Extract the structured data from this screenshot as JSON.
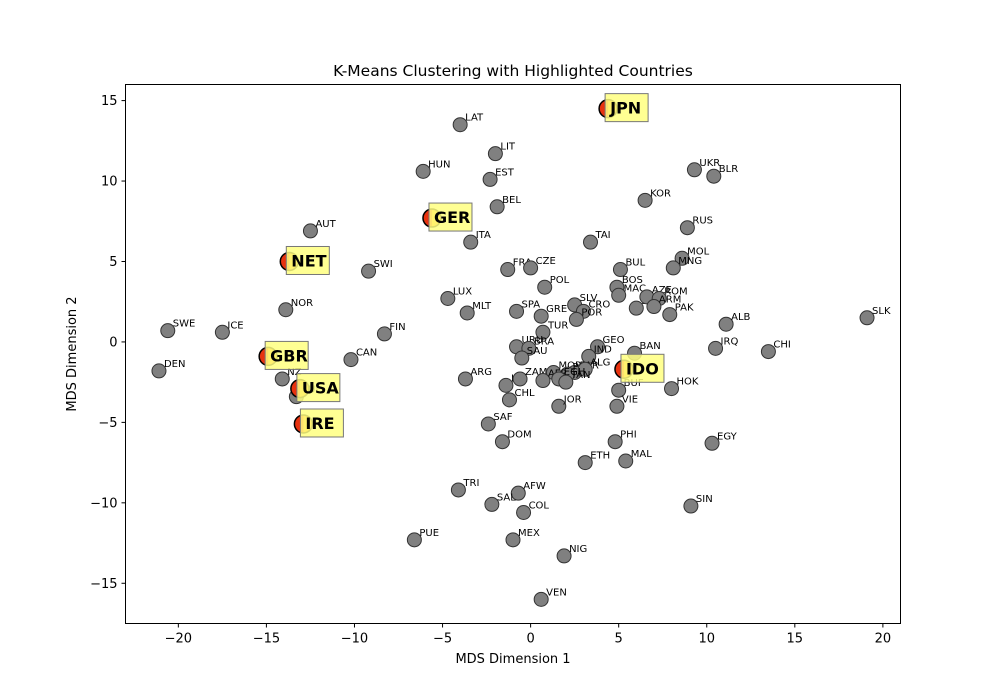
{
  "chart_data": {
    "type": "scatter",
    "title": "K-Means Clustering with Highlighted Countries",
    "xlabel": "MDS Dimension 1",
    "ylabel": "MDS Dimension 2",
    "xlim": [
      -23,
      21
    ],
    "ylim": [
      -17.5,
      16
    ],
    "xticks": [
      -20,
      -15,
      -10,
      -5,
      0,
      5,
      10,
      15,
      20
    ],
    "yticks": [
      -15,
      -10,
      -5,
      0,
      5,
      10,
      15
    ],
    "grid": false,
    "colors": {
      "point_fill": "#808080",
      "point_edge": "#333333",
      "highlight_fill": "#e8320f",
      "highlight_inner": "#ffa500",
      "highlight_edge": "#000000",
      "label_box_fill": "#ffff80",
      "label_box_edge": "#777777"
    },
    "points": [
      {
        "label": "LAT",
        "x": -4.0,
        "y": 13.5
      },
      {
        "label": "LIT",
        "x": -2.0,
        "y": 11.7
      },
      {
        "label": "HUN",
        "x": -6.1,
        "y": 10.6
      },
      {
        "label": "EST",
        "x": -2.3,
        "y": 10.1
      },
      {
        "label": "BEL",
        "x": -1.9,
        "y": 8.4
      },
      {
        "label": "AUT",
        "x": -12.5,
        "y": 6.9
      },
      {
        "label": "ITA",
        "x": -3.4,
        "y": 6.2
      },
      {
        "label": "SWI",
        "x": -9.2,
        "y": 4.4
      },
      {
        "label": "FRA",
        "x": -1.3,
        "y": 4.5
      },
      {
        "label": "CZE",
        "x": 0.0,
        "y": 4.6
      },
      {
        "label": "LUX",
        "x": -4.7,
        "y": 2.7
      },
      {
        "label": "POL",
        "x": 0.8,
        "y": 3.4
      },
      {
        "label": "NOR",
        "x": -13.9,
        "y": 2.0
      },
      {
        "label": "MLT",
        "x": -3.6,
        "y": 1.8
      },
      {
        "label": "SPA",
        "x": -0.8,
        "y": 1.9
      },
      {
        "label": "GRE",
        "x": 0.6,
        "y": 1.6
      },
      {
        "label": "SWE",
        "x": -20.6,
        "y": 0.7
      },
      {
        "label": "ICE",
        "x": -17.5,
        "y": 0.6
      },
      {
        "label": "FIN",
        "x": -8.3,
        "y": 0.5
      },
      {
        "label": "TUR",
        "x": 0.7,
        "y": 0.6
      },
      {
        "label": "DEN",
        "x": -21.1,
        "y": -1.8
      },
      {
        "label": "CAN",
        "x": -10.2,
        "y": -1.1
      },
      {
        "label": "URU",
        "x": -0.8,
        "y": -0.3
      },
      {
        "label": "BRA",
        "x": -0.1,
        "y": -0.4
      },
      {
        "label": "SAU",
        "x": -0.5,
        "y": -1.0
      },
      {
        "label": "NZ",
        "x": -14.1,
        "y": -2.3
      },
      {
        "label": "AUL",
        "x": -13.3,
        "y": -3.4
      },
      {
        "label": "ARG",
        "x": -3.7,
        "y": -2.3
      },
      {
        "label": "IRA",
        "x": -1.4,
        "y": -2.7
      },
      {
        "label": "ZAM",
        "x": -0.6,
        "y": -2.3
      },
      {
        "label": "CHL",
        "x": -1.2,
        "y": -3.6
      },
      {
        "label": "SAF",
        "x": -2.4,
        "y": -5.1
      },
      {
        "label": "DOM",
        "x": -1.6,
        "y": -6.2
      },
      {
        "label": "TRI",
        "x": -4.1,
        "y": -9.2
      },
      {
        "label": "AFW",
        "x": -0.7,
        "y": -9.4
      },
      {
        "label": "SAL",
        "x": -2.2,
        "y": -10.1
      },
      {
        "label": "COL",
        "x": -0.4,
        "y": -10.6
      },
      {
        "label": "PUE",
        "x": -6.6,
        "y": -12.3
      },
      {
        "label": "MEX",
        "x": -1.0,
        "y": -12.3
      },
      {
        "label": "NIG",
        "x": 1.9,
        "y": -13.3
      },
      {
        "label": "VEN",
        "x": 0.6,
        "y": -16.0
      },
      {
        "label": "TAI",
        "x": 3.4,
        "y": 6.2
      },
      {
        "label": "BUL",
        "x": 5.1,
        "y": 4.5
      },
      {
        "label": "BOS",
        "x": 4.9,
        "y": 3.4
      },
      {
        "label": "MAC",
        "x": 5.0,
        "y": 2.9
      },
      {
        "label": "SLV",
        "x": 2.5,
        "y": 2.3
      },
      {
        "label": "CRO",
        "x": 3.0,
        "y": 1.9
      },
      {
        "label": "POR",
        "x": 2.6,
        "y": 1.4
      },
      {
        "label": "SER",
        "x": 6.0,
        "y": 2.1
      },
      {
        "label": "AZE",
        "x": 6.6,
        "y": 2.8
      },
      {
        "label": "ROM",
        "x": 7.3,
        "y": 2.7
      },
      {
        "label": "ARM",
        "x": 7.0,
        "y": 2.2
      },
      {
        "label": "PAK",
        "x": 7.9,
        "y": 1.7
      },
      {
        "label": "GEO",
        "x": 3.8,
        "y": -0.3
      },
      {
        "label": "IND",
        "x": 3.3,
        "y": -0.9
      },
      {
        "label": "BAN",
        "x": 5.9,
        "y": -0.7
      },
      {
        "label": "MOR",
        "x": 1.3,
        "y": -1.9
      },
      {
        "label": "PAR",
        "x": 2.5,
        "y": -1.9
      },
      {
        "label": "PER",
        "x": 2.1,
        "y": -2.0
      },
      {
        "label": "ALG",
        "x": 3.1,
        "y": -1.7
      },
      {
        "label": "AFR",
        "x": 0.7,
        "y": -2.4
      },
      {
        "label": "EGH",
        "x": 1.6,
        "y": -2.3
      },
      {
        "label": "TAN",
        "x": 2.0,
        "y": -2.5
      },
      {
        "label": "JOR",
        "x": 1.6,
        "y": -4.0
      },
      {
        "label": "BUF",
        "x": 5.0,
        "y": -3.0
      },
      {
        "label": "VIE",
        "x": 4.9,
        "y": -4.0
      },
      {
        "label": "HOK",
        "x": 8.0,
        "y": -2.9
      },
      {
        "label": "PHI",
        "x": 4.8,
        "y": -6.2
      },
      {
        "label": "ETH",
        "x": 3.1,
        "y": -7.5
      },
      {
        "label": "MAL",
        "x": 5.4,
        "y": -7.4
      },
      {
        "label": "EGY",
        "x": 10.3,
        "y": -6.3
      },
      {
        "label": "SIN",
        "x": 9.1,
        "y": -10.2
      },
      {
        "label": "KOR",
        "x": 6.5,
        "y": 8.8
      },
      {
        "label": "UKR",
        "x": 9.3,
        "y": 10.7
      },
      {
        "label": "BLR",
        "x": 10.4,
        "y": 10.3
      },
      {
        "label": "RUS",
        "x": 8.9,
        "y": 7.1
      },
      {
        "label": "MOL",
        "x": 8.6,
        "y": 5.2
      },
      {
        "label": "MNG",
        "x": 8.1,
        "y": 4.6
      },
      {
        "label": "ALB",
        "x": 11.1,
        "y": 1.1
      },
      {
        "label": "IRQ",
        "x": 10.5,
        "y": -0.4
      },
      {
        "label": "CHI",
        "x": 13.5,
        "y": -0.6
      },
      {
        "label": "SLK",
        "x": 19.1,
        "y": 1.5
      }
    ],
    "highlighted": [
      {
        "label": "JPN",
        "x": 4.4,
        "y": 14.5
      },
      {
        "label": "GER",
        "x": -5.6,
        "y": 7.7
      },
      {
        "label": "NET",
        "x": -13.7,
        "y": 5.0
      },
      {
        "label": "GBR",
        "x": -14.9,
        "y": -0.9
      },
      {
        "label": "USA",
        "x": -13.1,
        "y": -2.9
      },
      {
        "label": "IRE",
        "x": -12.9,
        "y": -5.1
      },
      {
        "label": "IDO",
        "x": 5.3,
        "y": -1.7
      }
    ]
  }
}
